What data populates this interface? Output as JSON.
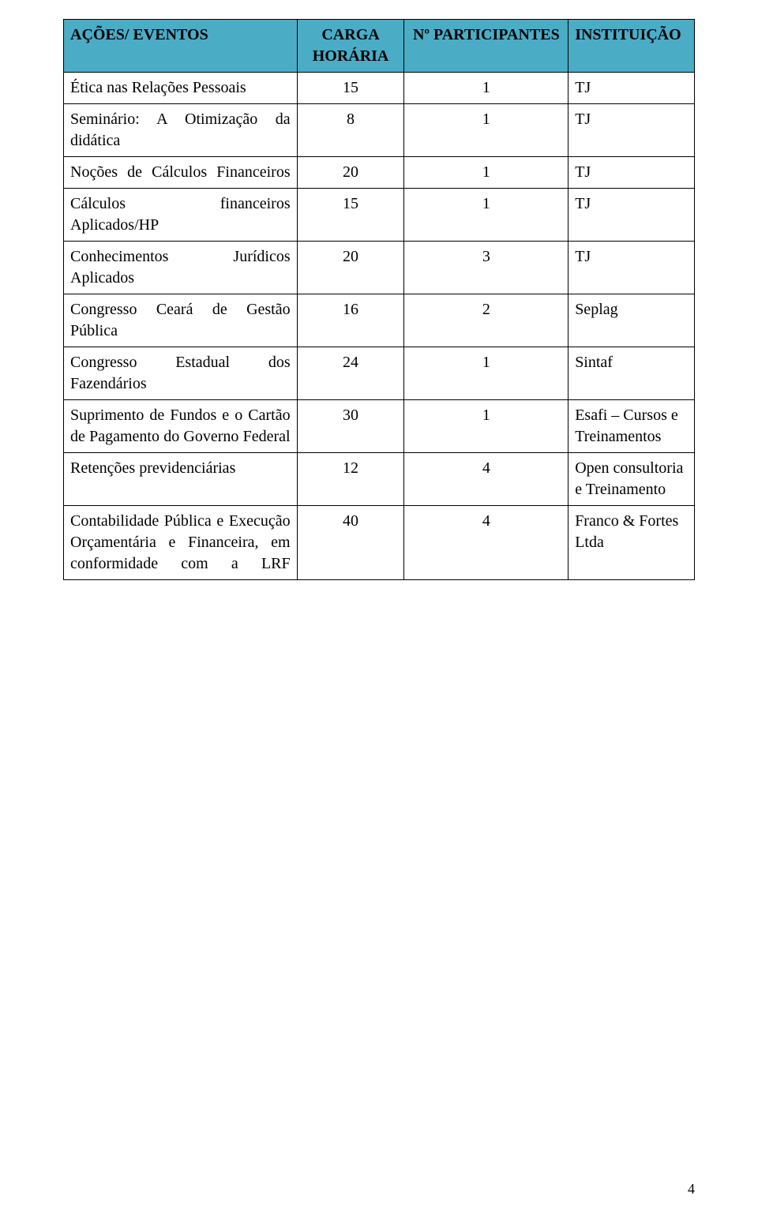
{
  "header_bg": "#4bacc6",
  "border_color": "#000000",
  "columns": [
    {
      "key": "acoes",
      "label": "AÇÕES/ EVENTOS"
    },
    {
      "key": "carga",
      "label": "CARGA HORÁRIA"
    },
    {
      "key": "part",
      "label": "Nº PARTICIPANTES"
    },
    {
      "key": "inst",
      "label": "INSTITUIÇÃO"
    }
  ],
  "rows": [
    {
      "acao": "Ética nas Relações Pessoais",
      "carga": "15",
      "part": "1",
      "inst": "TJ",
      "justify": false
    },
    {
      "acao": "Seminário: A Otimização da didática",
      "carga": "8",
      "part": "1",
      "inst": "TJ",
      "justify": true
    },
    {
      "acao": "Noções de Cálculos Financeiros",
      "carga": "20",
      "part": "1",
      "inst": "TJ",
      "justify": true
    },
    {
      "acao": "Cálculos financeiros Aplicados/HP",
      "carga": "15",
      "part": "1",
      "inst": "TJ",
      "justify": true
    },
    {
      "acao": "Conhecimentos Jurídicos Aplicados",
      "carga": "20",
      "part": "3",
      "inst": "TJ",
      "justify": true
    },
    {
      "acao": "Congresso Ceará de Gestão Pública",
      "carga": "16",
      "part": "2",
      "inst": "Seplag",
      "justify": true
    },
    {
      "acao": "Congresso Estadual dos Fazendários",
      "carga": "24",
      "part": "1",
      "inst": "Sintaf",
      "justify": true
    },
    {
      "acao": "Suprimento de Fundos e o Cartão de Pagamento do Governo Federal",
      "carga": "30",
      "part": "1",
      "inst": "Esafi – Cursos e Treinamentos",
      "justify": true
    },
    {
      "acao": "Retenções previdenciárias",
      "carga": "12",
      "part": "4",
      "inst": "Open consultoria e Treinamento",
      "justify": false
    },
    {
      "acao": "Contabilidade Pública e Execução Orçamentária e Financeira, em conformidade com a LRF",
      "carga": "40",
      "part": "4",
      "inst": "Franco & Fortes Ltda",
      "justify": true
    }
  ],
  "page_number": "4"
}
